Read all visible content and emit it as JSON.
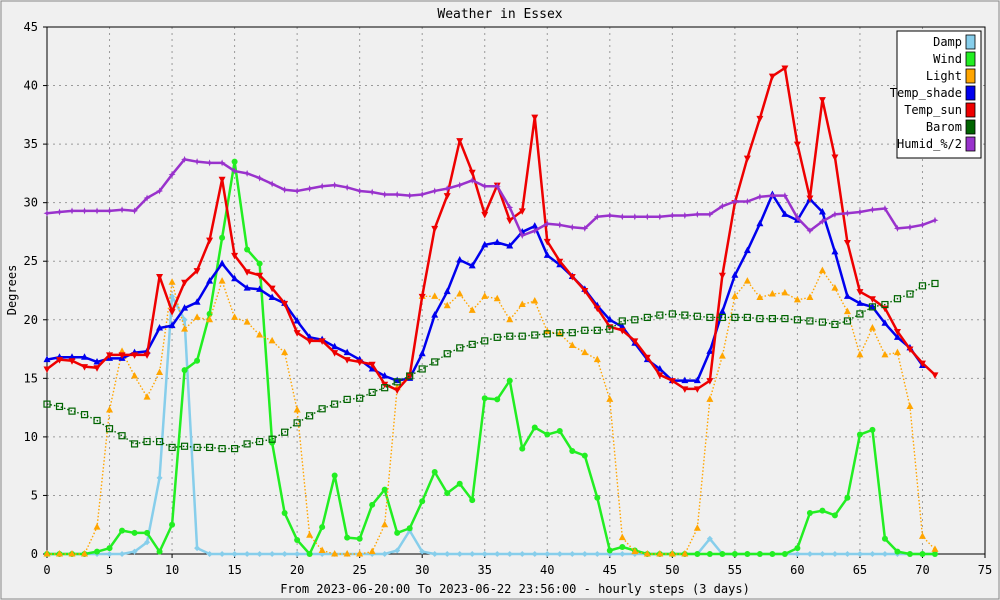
{
  "chart_data": {
    "type": "line",
    "title": "Weather in Essex",
    "xlabel": "From 2023-06-20:00 To 2023-06-22 23:56:00 - hourly steps (3 days)",
    "ylabel": "Degrees",
    "xlim": [
      0,
      75
    ],
    "ylim": [
      0,
      45
    ],
    "xticks": [
      0,
      5,
      10,
      15,
      20,
      25,
      30,
      35,
      40,
      45,
      50,
      55,
      60,
      65,
      70,
      75
    ],
    "yticks": [
      0,
      5,
      10,
      15,
      20,
      25,
      30,
      35,
      40,
      45
    ],
    "grid": true,
    "legend_position": "top-right",
    "series": [
      {
        "name": "Damp",
        "color": "#87ceeb",
        "marker": "diamond",
        "style": "solid",
        "values": [
          0,
          0,
          0,
          0,
          0,
          0,
          0,
          0.2,
          1,
          6.5,
          22,
          20,
          0.5,
          0,
          0,
          0,
          0,
          0,
          0,
          0,
          0,
          0,
          0,
          0,
          0,
          0,
          0,
          0,
          0.3,
          2,
          0.2,
          0,
          0,
          0,
          0,
          0,
          0,
          0,
          0,
          0,
          0,
          0,
          0,
          0,
          0,
          0,
          0,
          0,
          0,
          0,
          0,
          0,
          0,
          1.3,
          0,
          0,
          0,
          0,
          0,
          0,
          0,
          0,
          0,
          0,
          0,
          0,
          0,
          0,
          0,
          0,
          0,
          0
        ]
      },
      {
        "name": "Wind",
        "color": "#22ee22",
        "marker": "circle",
        "style": "solid",
        "values": [
          0,
          0,
          0,
          0,
          0.2,
          0.5,
          2,
          1.8,
          1.8,
          0.2,
          2.5,
          15.7,
          16.5,
          20.5,
          27,
          33.5,
          26,
          24.8,
          9.5,
          3.5,
          1.2,
          0,
          2.3,
          6.7,
          1.4,
          1.3,
          4.2,
          5.5,
          1.8,
          2.2,
          4.5,
          7,
          5.2,
          6,
          4.6,
          13.3,
          13.2,
          14.8,
          9,
          10.8,
          10.2,
          10.5,
          8.8,
          8.4,
          4.8,
          0.3,
          0.6,
          0.3,
          0,
          0,
          0,
          0,
          0,
          0,
          0,
          0,
          0,
          0,
          0,
          0,
          0.5,
          3.5,
          3.7,
          3.3,
          4.8,
          10.2,
          10.6,
          1.3,
          0.2,
          0,
          0,
          0
        ]
      },
      {
        "name": "Light",
        "color": "#ffa500",
        "marker": "triangle",
        "style": "dotted",
        "values": [
          0,
          0,
          0,
          0,
          2.3,
          12.3,
          17.3,
          15.2,
          13.4,
          15.5,
          23.2,
          19.2,
          20.2,
          20,
          23.3,
          20.2,
          19.8,
          18.7,
          18.2,
          17.2,
          12.3,
          1.6,
          0.3,
          0,
          0,
          0,
          0.2,
          2.5,
          14.2,
          15.3,
          22,
          22,
          21.2,
          22.2,
          20.8,
          22,
          21.8,
          20,
          21.3,
          21.6,
          19,
          18.8,
          17.8,
          17.2,
          16.6,
          13.2,
          1.4,
          0.2,
          0,
          0,
          0,
          0,
          2.2,
          13.2,
          16.9,
          22,
          23.3,
          21.9,
          22.2,
          22.3,
          21.7,
          21.9,
          24.2,
          22.7,
          20.7,
          17,
          19.3,
          17,
          17.2,
          12.6,
          1.5,
          0.4
        ]
      },
      {
        "name": "Temp_shade",
        "color": "#0000ee",
        "marker": "triangle",
        "style": "solid",
        "values": [
          16.6,
          16.8,
          16.8,
          16.8,
          16.4,
          16.7,
          16.7,
          17.2,
          17.3,
          19.3,
          19.5,
          21,
          21.5,
          23.3,
          24.8,
          23.5,
          22.7,
          22.6,
          21.9,
          21.4,
          19.9,
          18.5,
          18.3,
          17.7,
          17.2,
          16.6,
          15.8,
          15.2,
          14.8,
          15,
          17.1,
          20.4,
          22.4,
          25.1,
          24.6,
          26.4,
          26.6,
          26.3,
          27.5,
          28,
          25.5,
          24.7,
          23.7,
          22.6,
          21.2,
          20,
          19.4,
          18,
          16.6,
          15.8,
          14.8,
          14.8,
          14.8,
          17.3,
          20.7,
          23.8,
          25.9,
          28.2,
          30.7,
          29,
          28.5,
          30.3,
          29.2,
          25.8,
          22,
          21.4,
          21.1,
          19.7,
          18.5,
          17.6,
          16.1
        ]
      },
      {
        "name": "Temp_sun",
        "color": "#ee0000",
        "marker": "triangle-down",
        "style": "solid",
        "values": [
          15.8,
          16.6,
          16.5,
          16,
          15.9,
          17,
          17,
          17,
          17,
          23.7,
          20.7,
          23.2,
          24.2,
          26.8,
          32,
          25.5,
          24.1,
          23.8,
          22.7,
          21.4,
          18.9,
          18.2,
          18.2,
          17.2,
          16.6,
          16.4,
          16.2,
          14.5,
          14,
          15.2,
          22,
          27.8,
          30.6,
          35.3,
          32.6,
          29,
          31.5,
          28.5,
          29.3,
          37.3,
          26.7,
          25,
          23.7,
          22.5,
          21,
          19.4,
          19.1,
          18.2,
          16.8,
          15.3,
          14.8,
          14.1,
          14.1,
          14.8,
          23.8,
          30,
          33.8,
          37.2,
          40.8,
          41.5,
          35,
          30.4,
          38.8,
          33.9,
          26.6,
          22.4,
          21.8,
          21,
          19,
          17.5,
          16.3,
          15.3
        ]
      },
      {
        "name": "Barom",
        "color": "#006400",
        "marker": "square-open",
        "style": "dotted",
        "values": [
          12.8,
          12.6,
          12.2,
          11.9,
          11.4,
          10.7,
          10.1,
          9.4,
          9.6,
          9.6,
          9.1,
          9.2,
          9.1,
          9.1,
          9,
          9,
          9.4,
          9.6,
          9.8,
          10.4,
          11.2,
          11.8,
          12.4,
          12.8,
          13.2,
          13.3,
          13.8,
          14.2,
          14.7,
          15.2,
          15.8,
          16.4,
          17.1,
          17.6,
          17.9,
          18.2,
          18.5,
          18.6,
          18.6,
          18.7,
          18.8,
          18.9,
          18.9,
          19.1,
          19.1,
          19.2,
          19.9,
          20,
          20.2,
          20.4,
          20.5,
          20.4,
          20.3,
          20.2,
          20.2,
          20.2,
          20.2,
          20.1,
          20.1,
          20.1,
          20,
          19.9,
          19.8,
          19.6,
          19.9,
          20.5,
          21.1,
          21.3,
          21.8,
          22.2,
          22.9,
          23.1
        ]
      },
      {
        "name": "Humid_%/2",
        "color": "#9932cc",
        "marker": "star",
        "style": "solid",
        "values": [
          29.1,
          29.2,
          29.3,
          29.3,
          29.3,
          29.3,
          29.4,
          29.3,
          30.4,
          31,
          32.4,
          33.7,
          33.5,
          33.4,
          33.4,
          32.7,
          32.5,
          32.1,
          31.6,
          31.1,
          31,
          31.2,
          31.4,
          31.5,
          31.3,
          31,
          30.9,
          30.7,
          30.7,
          30.6,
          30.7,
          31,
          31.2,
          31.5,
          31.9,
          31.4,
          31.4,
          29.6,
          27.2,
          27.6,
          28.2,
          28.1,
          27.9,
          27.8,
          28.8,
          28.9,
          28.8,
          28.8,
          28.8,
          28.8,
          28.9,
          28.9,
          29,
          29,
          29.7,
          30.1,
          30.1,
          30.5,
          30.6,
          30.6,
          28.7,
          27.6,
          28.4,
          29,
          29.1,
          29.2,
          29.4,
          29.5,
          27.8,
          27.9,
          28.1,
          28.5
        ]
      }
    ]
  },
  "legend_labels": [
    "Damp",
    "Wind",
    "Light",
    "Temp_shade",
    "Temp_sun",
    "Barom",
    "Humid_%/2"
  ]
}
